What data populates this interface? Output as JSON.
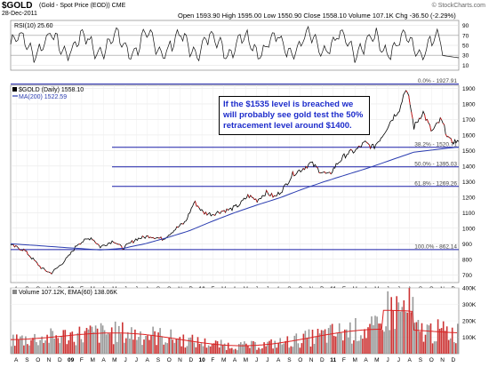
{
  "header": {
    "symbol": "$GOLD",
    "description": "(Gold - Spot Price (EOD)) CME",
    "date": "28-Dec-2011",
    "ohlc": "Open 1593.90  High 1595.00  Low 1550.90  Close 1558.10  Volume 107.1K  Chg -36.50 (-2.29%)",
    "watermark": "© StockCharts.com"
  },
  "annotation": {
    "text": "If the $1535 level is breached we will probably see gold test the 50% retracement level around $1400."
  },
  "chart_data": [
    {
      "type": "line",
      "panel": "rsi",
      "legend": "RSI(10) 25.60",
      "ylim": [
        0,
        100
      ],
      "ticks": [
        10,
        30,
        50,
        70,
        90
      ],
      "reference_lines": [
        30,
        70
      ],
      "last_value": 25.6
    },
    {
      "type": "line",
      "panel": "price",
      "legend": [
        "$GOLD (Daily) 1558.10",
        "MA(200) 1522.59"
      ],
      "ylim": [
        650,
        1920
      ],
      "ticks": [
        700,
        800,
        900,
        1000,
        1100,
        1200,
        1300,
        1400,
        1500,
        1600,
        1700,
        1800,
        1900
      ],
      "price": [
        [
          0,
          890
        ],
        [
          0.03,
          860
        ],
        [
          0.05,
          800
        ],
        [
          0.07,
          740
        ],
        [
          0.09,
          710
        ],
        [
          0.11,
          760
        ],
        [
          0.13,
          820
        ],
        [
          0.15,
          900
        ],
        [
          0.18,
          940
        ],
        [
          0.2,
          880
        ],
        [
          0.23,
          920
        ],
        [
          0.25,
          870
        ],
        [
          0.28,
          930
        ],
        [
          0.31,
          950
        ],
        [
          0.34,
          930
        ],
        [
          0.37,
          1000
        ],
        [
          0.39,
          1040
        ],
        [
          0.41,
          1170
        ],
        [
          0.43,
          1100
        ],
        [
          0.45,
          1090
        ],
        [
          0.47,
          1110
        ],
        [
          0.49,
          1120
        ],
        [
          0.51,
          1150
        ],
        [
          0.53,
          1210
        ],
        [
          0.55,
          1180
        ],
        [
          0.57,
          1230
        ],
        [
          0.59,
          1200
        ],
        [
          0.61,
          1260
        ],
        [
          0.63,
          1350
        ],
        [
          0.65,
          1380
        ],
        [
          0.67,
          1420
        ],
        [
          0.69,
          1370
        ],
        [
          0.71,
          1340
        ],
        [
          0.73,
          1420
        ],
        [
          0.75,
          1480
        ],
        [
          0.77,
          1500
        ],
        [
          0.79,
          1550
        ],
        [
          0.81,
          1520
        ],
        [
          0.83,
          1600
        ],
        [
          0.85,
          1700
        ],
        [
          0.87,
          1780
        ],
        [
          0.88,
          1900
        ],
        [
          0.89,
          1820
        ],
        [
          0.9,
          1650
        ],
        [
          0.92,
          1750
        ],
        [
          0.94,
          1620
        ],
        [
          0.96,
          1700
        ],
        [
          0.98,
          1560
        ],
        [
          1,
          1558
        ]
      ],
      "ma200": [
        [
          0,
          900
        ],
        [
          0.1,
          880
        ],
        [
          0.2,
          860
        ],
        [
          0.25,
          870
        ],
        [
          0.3,
          900
        ],
        [
          0.35,
          940
        ],
        [
          0.4,
          985
        ],
        [
          0.45,
          1045
        ],
        [
          0.5,
          1100
        ],
        [
          0.55,
          1150
        ],
        [
          0.6,
          1195
        ],
        [
          0.65,
          1250
        ],
        [
          0.7,
          1300
        ],
        [
          0.75,
          1345
        ],
        [
          0.8,
          1390
        ],
        [
          0.85,
          1440
        ],
        [
          0.9,
          1490
        ],
        [
          1,
          1523
        ]
      ],
      "fibonacci": [
        {
          "label": "0.0% - 1927.91",
          "value": 1927.91
        },
        {
          "label": "38.2% - 1520.71",
          "value": 1520.71
        },
        {
          "label": "50.0% - 1395.03",
          "value": 1395.03
        },
        {
          "label": "61.8% - 1269.26",
          "value": 1269.26
        },
        {
          "label": "100.0% - 862.14",
          "value": 862.14
        }
      ]
    },
    {
      "type": "bar",
      "panel": "volume",
      "legend": "Volume 107.12K, EMA(60) 138.06K",
      "ylim": [
        0,
        400000
      ],
      "ticks": [
        "100K",
        "200K",
        "300K",
        "400K"
      ]
    }
  ],
  "x_axis": {
    "months": [
      "A",
      "S",
      "O",
      "N",
      "D",
      "09",
      "F",
      "M",
      "A",
      "M",
      "J",
      "J",
      "A",
      "S",
      "O",
      "N",
      "D",
      "10",
      "F",
      "M",
      "A",
      "M",
      "J",
      "J",
      "A",
      "S",
      "O",
      "N",
      "D",
      "11",
      "F",
      "M",
      "A",
      "M",
      "J",
      "J",
      "A",
      "S",
      "O",
      "N",
      "D"
    ],
    "year_marks": [
      "09",
      "10",
      "11"
    ]
  }
}
